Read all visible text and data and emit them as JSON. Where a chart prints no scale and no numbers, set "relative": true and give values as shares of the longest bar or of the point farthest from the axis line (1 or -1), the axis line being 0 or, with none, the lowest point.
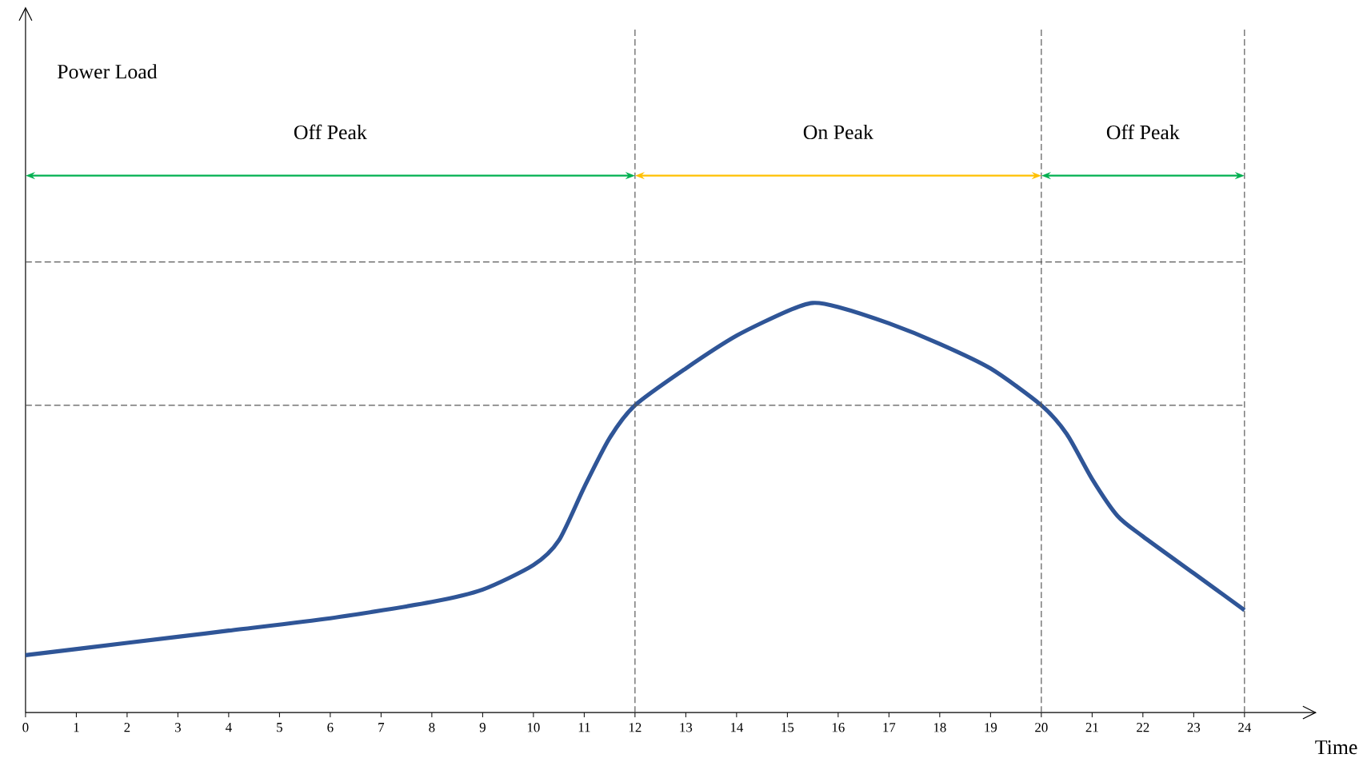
{
  "chart_data": {
    "type": "line",
    "annotations": [
      "Power Load",
      "Off Peak",
      "On Peak",
      "Off Peak"
    ],
    "xlabel": "Time",
    "relative": true,
    "x": [
      0,
      2,
      4,
      6,
      8,
      9,
      10,
      10.5,
      11,
      11.5,
      12,
      13,
      14,
      15,
      15.5,
      16,
      17,
      18,
      19,
      20,
      20.5,
      21,
      21.5,
      22,
      23,
      24
    ],
    "xlim": [
      0,
      25.4
    ],
    "xticks": [
      0,
      1,
      2,
      3,
      4,
      5,
      6,
      7,
      8,
      9,
      10,
      11,
      12,
      13,
      14,
      15,
      16,
      17,
      18,
      19,
      20,
      21,
      22,
      23,
      24
    ],
    "series": [
      {
        "color": "#2f5597",
        "values": [
          0.14,
          0.17,
          0.2,
          0.23,
          0.27,
          0.3,
          0.36,
          0.42,
          0.55,
          0.67,
          0.75,
          0.84,
          0.92,
          0.98,
          1.0,
          0.99,
          0.95,
          0.9,
          0.84,
          0.75,
          0.68,
          0.57,
          0.48,
          0.43,
          0.34,
          0.25
        ]
      }
    ],
    "ref_lines": [
      {
        "axis": "x",
        "value": 12,
        "color": "#595959",
        "line_style": "dashed"
      },
      {
        "axis": "x",
        "value": 20,
        "color": "#595959",
        "line_style": "dashed"
      },
      {
        "axis": "x",
        "value": 24,
        "color": "#595959",
        "line_style": "dashed"
      },
      {
        "axis": "y",
        "value": 1.1,
        "color": "#595959",
        "line_style": "dashed"
      },
      {
        "axis": "y",
        "value": 0.75,
        "color": "#595959",
        "line_style": "dashed"
      }
    ]
  }
}
